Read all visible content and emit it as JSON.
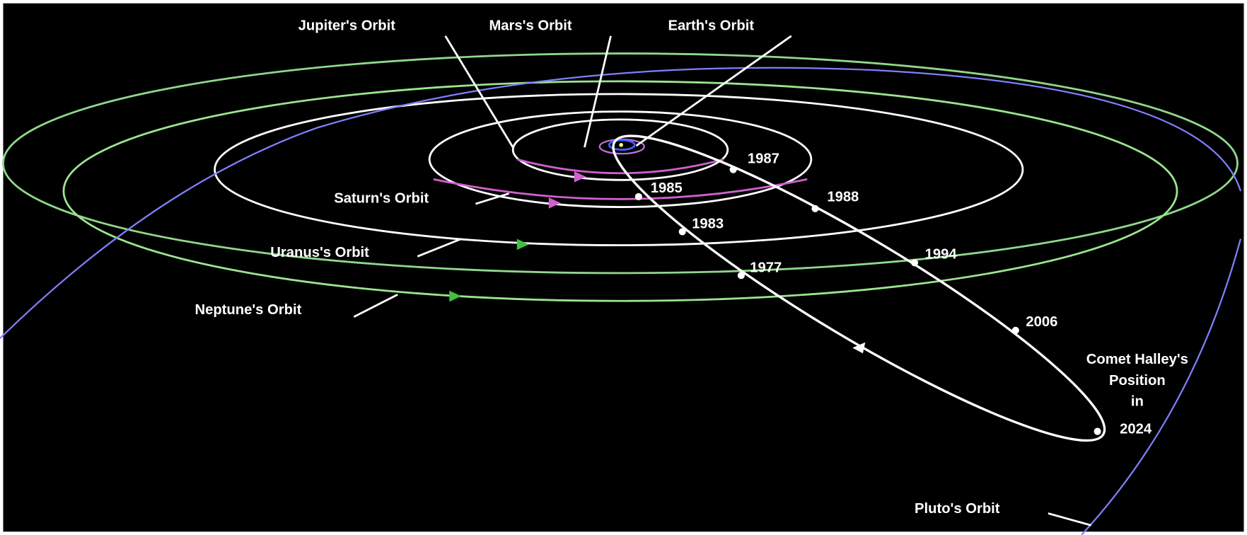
{
  "orbits": {
    "jupiter": "Jupiter's Orbit",
    "mars": "Mars's Orbit",
    "earth": "Earth's Orbit",
    "saturn": "Saturn's Orbit",
    "uranus": "Uranus's Orbit",
    "neptune": "Neptune's Orbit",
    "pluto": "Pluto's Orbit"
  },
  "years": [
    "1987",
    "1985",
    "1988",
    "1983",
    "1994",
    "1977",
    "2006"
  ],
  "comet_label": [
    "Comet Halley's",
    "Position",
    "in",
    "2024"
  ]
}
